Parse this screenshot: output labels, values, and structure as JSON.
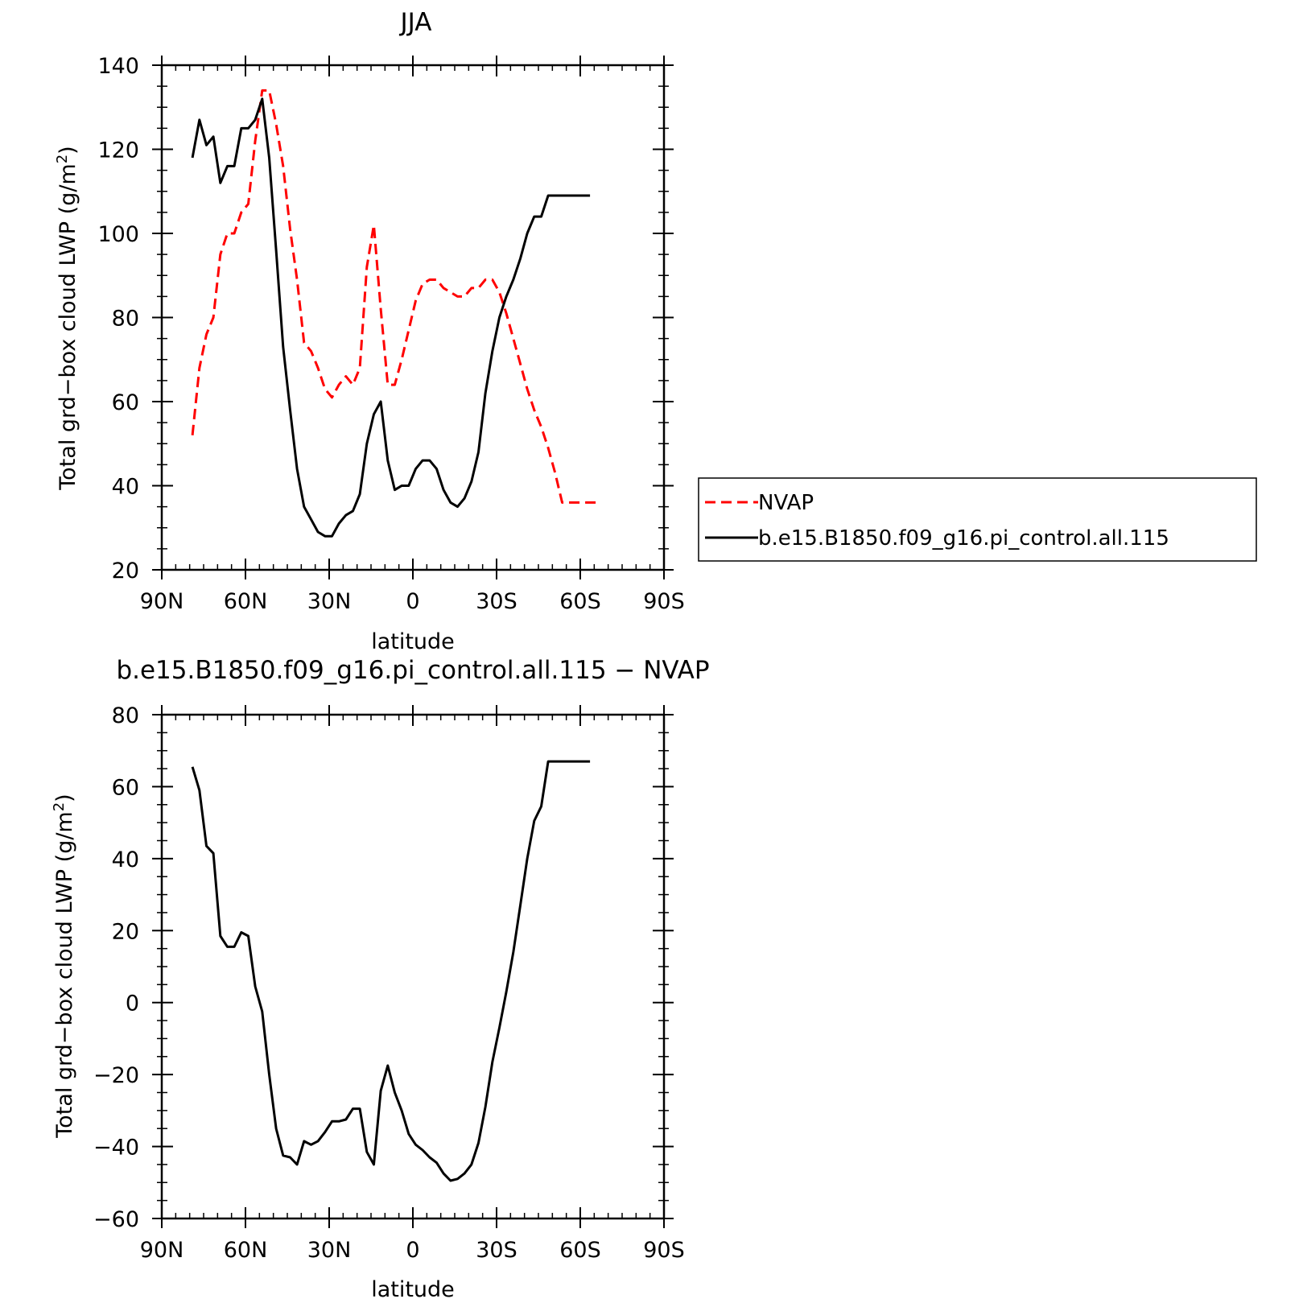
{
  "chart_data": [
    {
      "type": "line",
      "title": "JJA",
      "xlabel": "latitude",
      "ylabel_main": "Total grd−box cloud LWP",
      "ylabel_unit_prefix": "(g/m",
      "ylabel_unit_sup": "2",
      "ylabel_unit_suffix": ")",
      "xlim": [
        90,
        -90
      ],
      "ylim": [
        20,
        140
      ],
      "xticks": [
        {
          "value": 90,
          "label": "90N"
        },
        {
          "value": 60,
          "label": "60N"
        },
        {
          "value": 30,
          "label": "30N"
        },
        {
          "value": 0,
          "label": "0"
        },
        {
          "value": -30,
          "label": "30S"
        },
        {
          "value": -60,
          "label": "60S"
        },
        {
          "value": -90,
          "label": "90S"
        }
      ],
      "yticks": [
        20,
        40,
        60,
        80,
        100,
        120,
        140
      ],
      "legend_position": "right",
      "series": [
        {
          "name": "NVAP",
          "color": "#ff0000",
          "dash": "dashed",
          "x": [
            79,
            76.5,
            74,
            71.5,
            69,
            66.5,
            64,
            61.5,
            59,
            56.5,
            54,
            51.5,
            49,
            46.5,
            44,
            41.5,
            39,
            36.5,
            34,
            31.5,
            29,
            26.5,
            24,
            21.5,
            19,
            16.5,
            14,
            11.5,
            9,
            6.5,
            4,
            1.5,
            -1,
            -3.5,
            -6,
            -8.5,
            -11,
            -13.5,
            -16,
            -18.5,
            -21,
            -23.5,
            -26,
            -28.5,
            -31,
            -33.5,
            -36,
            -38.5,
            -41,
            -43.5,
            -46,
            -48.5,
            -51,
            -53.5,
            -56,
            -58.5,
            -61,
            -63.5,
            -66
          ],
          "y": [
            52,
            68,
            76,
            80,
            95,
            100,
            100,
            105,
            107,
            122,
            134,
            134,
            126,
            116,
            101,
            89,
            74,
            72,
            68,
            63,
            61,
            64,
            66,
            64,
            68,
            92,
            102,
            82,
            64,
            64,
            70,
            77,
            84,
            88,
            89,
            89,
            87,
            86,
            85,
            85,
            87,
            87,
            89,
            89,
            86,
            81,
            75,
            69,
            63,
            58,
            54,
            49,
            43,
            36,
            36,
            36,
            36,
            36,
            36
          ]
        },
        {
          "name": "b.e15.B1850.f09_g16.pi_control.all.115",
          "color": "#000000",
          "dash": "solid",
          "x": [
            79,
            76.5,
            74,
            71.5,
            69,
            66.5,
            64,
            61.5,
            59,
            56.5,
            54,
            51.5,
            49,
            46.5,
            44,
            41.5,
            39,
            36.5,
            34,
            31.5,
            29,
            26.5,
            24,
            21.5,
            19,
            16.5,
            14,
            11.5,
            9,
            6.5,
            4,
            1.5,
            -1,
            -3.5,
            -6,
            -8.5,
            -11,
            -13.5,
            -16,
            -18.5,
            -21,
            -23.5,
            -26,
            -28.5,
            -31,
            -33.5,
            -36,
            -38.5,
            -41,
            -43.5,
            -46,
            -48.5,
            -51,
            -53.5,
            -56,
            -58.5,
            -61,
            -63.5
          ],
          "y": [
            118,
            127,
            121,
            123,
            112,
            116,
            116,
            125,
            125,
            127,
            132,
            118,
            96,
            73,
            58,
            44,
            35,
            32,
            29,
            28,
            28,
            31,
            33,
            34,
            38,
            50,
            57,
            60,
            46,
            39,
            40,
            40,
            44,
            46,
            46,
            44,
            39,
            36,
            35,
            37,
            41,
            48,
            62,
            72,
            80,
            85,
            89,
            94,
            100,
            104,
            104,
            109,
            109,
            109,
            109,
            109,
            109,
            109
          ]
        }
      ]
    },
    {
      "type": "line",
      "title": "b.e15.B1850.f09_g16.pi_control.all.115 − NVAP",
      "xlabel": "latitude",
      "ylabel_main": "Total grd−box cloud LWP",
      "ylabel_unit_prefix": "(g/m",
      "ylabel_unit_sup": "2",
      "ylabel_unit_suffix": ")",
      "xlim": [
        90,
        -90
      ],
      "ylim": [
        -60,
        80
      ],
      "xticks": [
        {
          "value": 90,
          "label": "90N"
        },
        {
          "value": 60,
          "label": "60N"
        },
        {
          "value": 30,
          "label": "30N"
        },
        {
          "value": 0,
          "label": "0"
        },
        {
          "value": -30,
          "label": "30S"
        },
        {
          "value": -60,
          "label": "60S"
        },
        {
          "value": -90,
          "label": "90S"
        }
      ],
      "yticks": [
        -60,
        -40,
        -20,
        0,
        20,
        40,
        60,
        80
      ],
      "series": [
        {
          "color": "#000000",
          "dash": "solid",
          "x": [
            79,
            76.5,
            74,
            71.5,
            69,
            66.5,
            64,
            61.5,
            59,
            56.5,
            54,
            51.5,
            49,
            46.5,
            44,
            41.5,
            39,
            36.5,
            34,
            31.5,
            29,
            26.5,
            24,
            21.5,
            19,
            16.5,
            14,
            11.5,
            9,
            6.5,
            4,
            1.5,
            -1,
            -3.5,
            -6,
            -8.5,
            -11,
            -13.5,
            -16,
            -18.5,
            -21,
            -23.5,
            -26,
            -28.5,
            -31,
            -33.5,
            -36,
            -38.5,
            -41,
            -43.5,
            -46,
            -48.5,
            -51,
            -53.5,
            -56,
            -58.5,
            -61,
            -63.5
          ],
          "y": [
            65.5,
            59,
            43.5,
            41.5,
            18.5,
            15.5,
            15.5,
            19.5,
            18.5,
            4.5,
            -2.5,
            -20,
            -35,
            -42.5,
            -43,
            -45,
            -38.5,
            -39.5,
            -38.5,
            -36,
            -33,
            -33,
            -32.5,
            -29.5,
            -29.5,
            -41.5,
            -45,
            -24.5,
            -17.5,
            -25,
            -30,
            -36.5,
            -39.5,
            -41,
            -43,
            -44.5,
            -47.5,
            -49.5,
            -49,
            -47.5,
            -45,
            -39,
            -29,
            -16.5,
            -7,
            3,
            14,
            27,
            40,
            50.5,
            54.5,
            67,
            67,
            67,
            67,
            67,
            67,
            67
          ]
        }
      ]
    }
  ]
}
